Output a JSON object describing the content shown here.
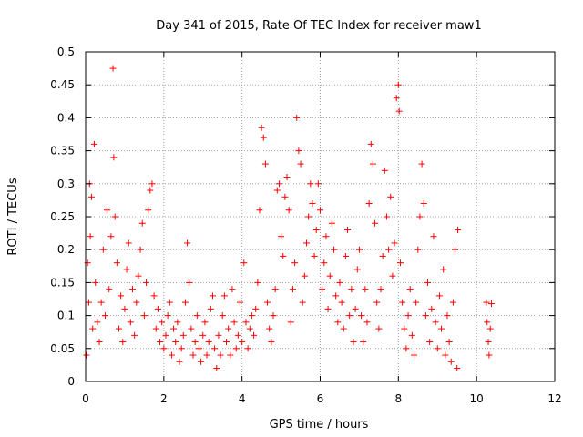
{
  "chart_data": {
    "type": "scatter",
    "title": "Day 341 of 2015, Rate Of TEC Index for receiver maw1",
    "xlabel": "GPS time / hours",
    "ylabel": "ROTI / TECUs",
    "xlim": [
      0,
      12
    ],
    "ylim": [
      0,
      0.5
    ],
    "xticks": [
      0,
      2,
      4,
      6,
      8,
      10,
      12
    ],
    "yticks": [
      0,
      0.05,
      0.1,
      0.15,
      0.2,
      0.25,
      0.3,
      0.35,
      0.4,
      0.45,
      0.5
    ],
    "xtick_labels": [
      "0",
      "2",
      "4",
      "6",
      "8",
      "10",
      "12"
    ],
    "ytick_labels": [
      "0",
      "0.05",
      "0.1",
      "0.15",
      "0.2",
      "0.25",
      "0.3",
      "0.35",
      "0.4",
      "0.45",
      "0.5"
    ],
    "grid": true,
    "marker": "+",
    "color": "#ff0000",
    "series": [
      {
        "name": "ROTI",
        "points": [
          [
            0.02,
            0.04
          ],
          [
            0.05,
            0.18
          ],
          [
            0.08,
            0.12
          ],
          [
            0.1,
            0.3
          ],
          [
            0.12,
            0.22
          ],
          [
            0.15,
            0.28
          ],
          [
            0.18,
            0.08
          ],
          [
            0.22,
            0.36
          ],
          [
            0.25,
            0.15
          ],
          [
            0.3,
            0.09
          ],
          [
            0.35,
            0.06
          ],
          [
            0.4,
            0.12
          ],
          [
            0.45,
            0.2
          ],
          [
            0.5,
            0.1
          ],
          [
            0.55,
            0.26
          ],
          [
            0.6,
            0.14
          ],
          [
            0.65,
            0.22
          ],
          [
            0.7,
            0.475
          ],
          [
            0.72,
            0.34
          ],
          [
            0.75,
            0.25
          ],
          [
            0.8,
            0.18
          ],
          [
            0.85,
            0.08
          ],
          [
            0.9,
            0.13
          ],
          [
            0.95,
            0.06
          ],
          [
            1.0,
            0.11
          ],
          [
            1.05,
            0.17
          ],
          [
            1.1,
            0.21
          ],
          [
            1.15,
            0.09
          ],
          [
            1.2,
            0.14
          ],
          [
            1.25,
            0.07
          ],
          [
            1.3,
            0.12
          ],
          [
            1.35,
            0.16
          ],
          [
            1.4,
            0.2
          ],
          [
            1.45,
            0.24
          ],
          [
            1.5,
            0.1
          ],
          [
            1.55,
            0.15
          ],
          [
            1.6,
            0.26
          ],
          [
            1.65,
            0.29
          ],
          [
            1.7,
            0.3
          ],
          [
            1.75,
            0.13
          ],
          [
            1.8,
            0.08
          ],
          [
            1.85,
            0.11
          ],
          [
            1.9,
            0.06
          ],
          [
            1.95,
            0.09
          ],
          [
            2.0,
            0.05
          ],
          [
            2.05,
            0.07
          ],
          [
            2.1,
            0.1
          ],
          [
            2.15,
            0.12
          ],
          [
            2.2,
            0.04
          ],
          [
            2.25,
            0.08
          ],
          [
            2.3,
            0.06
          ],
          [
            2.35,
            0.09
          ],
          [
            2.4,
            0.03
          ],
          [
            2.45,
            0.05
          ],
          [
            2.5,
            0.07
          ],
          [
            2.55,
            0.12
          ],
          [
            2.6,
            0.21
          ],
          [
            2.65,
            0.15
          ],
          [
            2.7,
            0.08
          ],
          [
            2.75,
            0.04
          ],
          [
            2.8,
            0.06
          ],
          [
            2.85,
            0.1
          ],
          [
            2.9,
            0.05
          ],
          [
            2.95,
            0.03
          ],
          [
            3.0,
            0.07
          ],
          [
            3.05,
            0.09
          ],
          [
            3.1,
            0.04
          ],
          [
            3.15,
            0.06
          ],
          [
            3.2,
            0.11
          ],
          [
            3.25,
            0.13
          ],
          [
            3.3,
            0.05
          ],
          [
            3.35,
            0.02
          ],
          [
            3.4,
            0.07
          ],
          [
            3.45,
            0.04
          ],
          [
            3.5,
            0.1
          ],
          [
            3.55,
            0.13
          ],
          [
            3.6,
            0.06
          ],
          [
            3.65,
            0.08
          ],
          [
            3.7,
            0.04
          ],
          [
            3.75,
            0.14
          ],
          [
            3.8,
            0.09
          ],
          [
            3.85,
            0.05
          ],
          [
            3.9,
            0.07
          ],
          [
            3.95,
            0.12
          ],
          [
            4.0,
            0.06
          ],
          [
            4.05,
            0.18
          ],
          [
            4.1,
            0.09
          ],
          [
            4.15,
            0.05
          ],
          [
            4.2,
            0.08
          ],
          [
            4.25,
            0.1
          ],
          [
            4.3,
            0.07
          ],
          [
            4.35,
            0.11
          ],
          [
            4.4,
            0.15
          ],
          [
            4.45,
            0.26
          ],
          [
            4.5,
            0.385
          ],
          [
            4.55,
            0.37
          ],
          [
            4.6,
            0.33
          ],
          [
            4.65,
            0.12
          ],
          [
            4.7,
            0.08
          ],
          [
            4.75,
            0.06
          ],
          [
            4.8,
            0.1
          ],
          [
            4.85,
            0.14
          ],
          [
            4.9,
            0.29
          ],
          [
            4.95,
            0.3
          ],
          [
            5.0,
            0.22
          ],
          [
            5.05,
            0.19
          ],
          [
            5.1,
            0.28
          ],
          [
            5.15,
            0.31
          ],
          [
            5.2,
            0.26
          ],
          [
            5.25,
            0.09
          ],
          [
            5.3,
            0.14
          ],
          [
            5.35,
            0.18
          ],
          [
            5.4,
            0.4
          ],
          [
            5.45,
            0.35
          ],
          [
            5.5,
            0.33
          ],
          [
            5.55,
            0.12
          ],
          [
            5.6,
            0.16
          ],
          [
            5.65,
            0.21
          ],
          [
            5.7,
            0.25
          ],
          [
            5.75,
            0.3
          ],
          [
            5.8,
            0.27
          ],
          [
            5.85,
            0.19
          ],
          [
            5.9,
            0.23
          ],
          [
            5.95,
            0.3
          ],
          [
            6.0,
            0.26
          ],
          [
            6.05,
            0.14
          ],
          [
            6.1,
            0.18
          ],
          [
            6.15,
            0.22
          ],
          [
            6.2,
            0.11
          ],
          [
            6.25,
            0.16
          ],
          [
            6.3,
            0.24
          ],
          [
            6.35,
            0.2
          ],
          [
            6.4,
            0.13
          ],
          [
            6.45,
            0.09
          ],
          [
            6.5,
            0.15
          ],
          [
            6.55,
            0.12
          ],
          [
            6.6,
            0.08
          ],
          [
            6.65,
            0.19
          ],
          [
            6.7,
            0.23
          ],
          [
            6.75,
            0.1
          ],
          [
            6.8,
            0.14
          ],
          [
            6.85,
            0.06
          ],
          [
            6.9,
            0.11
          ],
          [
            6.95,
            0.17
          ],
          [
            7.0,
            0.2
          ],
          [
            7.05,
            0.1
          ],
          [
            7.1,
            0.06
          ],
          [
            7.15,
            0.14
          ],
          [
            7.2,
            0.09
          ],
          [
            7.25,
            0.27
          ],
          [
            7.3,
            0.36
          ],
          [
            7.35,
            0.33
          ],
          [
            7.4,
            0.24
          ],
          [
            7.45,
            0.12
          ],
          [
            7.5,
            0.08
          ],
          [
            7.55,
            0.14
          ],
          [
            7.6,
            0.19
          ],
          [
            7.65,
            0.32
          ],
          [
            7.7,
            0.25
          ],
          [
            7.75,
            0.2
          ],
          [
            7.8,
            0.28
          ],
          [
            7.85,
            0.16
          ],
          [
            7.9,
            0.21
          ],
          [
            7.95,
            0.43
          ],
          [
            8.0,
            0.45
          ],
          [
            8.02,
            0.41
          ],
          [
            8.05,
            0.18
          ],
          [
            8.1,
            0.12
          ],
          [
            8.15,
            0.08
          ],
          [
            8.2,
            0.05
          ],
          [
            8.25,
            0.1
          ],
          [
            8.3,
            0.14
          ],
          [
            8.35,
            0.07
          ],
          [
            8.4,
            0.04
          ],
          [
            8.45,
            0.12
          ],
          [
            8.5,
            0.2
          ],
          [
            8.55,
            0.25
          ],
          [
            8.6,
            0.33
          ],
          [
            8.65,
            0.27
          ],
          [
            8.7,
            0.1
          ],
          [
            8.75,
            0.15
          ],
          [
            8.8,
            0.06
          ],
          [
            8.85,
            0.11
          ],
          [
            8.9,
            0.22
          ],
          [
            8.95,
            0.09
          ],
          [
            9.0,
            0.05
          ],
          [
            9.05,
            0.13
          ],
          [
            9.1,
            0.08
          ],
          [
            9.15,
            0.17
          ],
          [
            9.2,
            0.04
          ],
          [
            9.25,
            0.1
          ],
          [
            9.3,
            0.06
          ],
          [
            9.35,
            0.03
          ],
          [
            9.4,
            0.12
          ],
          [
            9.45,
            0.2
          ],
          [
            9.5,
            0.02
          ],
          [
            9.52,
            0.23
          ],
          [
            10.25,
            0.12
          ],
          [
            10.27,
            0.09
          ],
          [
            10.3,
            0.06
          ],
          [
            10.32,
            0.04
          ],
          [
            10.35,
            0.08
          ],
          [
            10.38,
            0.118
          ]
        ]
      }
    ]
  }
}
